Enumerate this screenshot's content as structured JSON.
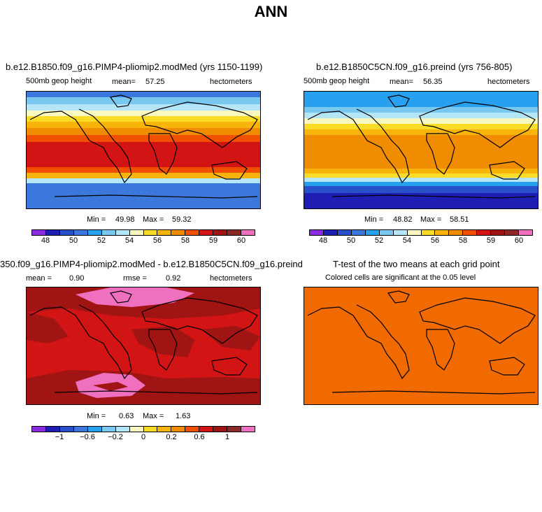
{
  "main_title": "ANN",
  "units": "hectometers",
  "panels": [
    {
      "title": "b.e12.B1850.f09_g16.PIMP4-pliomip2.modMed (yrs 1150-1199)",
      "field": "500mb  geop height",
      "mean_label": "mean=",
      "mean": "57.25",
      "units": "hectometers",
      "min_label": "Min =",
      "min": "49.98",
      "max_label": "Max =",
      "max": "59.32"
    },
    {
      "title": "b.e12.B1850C5CN.f09_g16.preind (yrs 756-805)",
      "field": "500mb  geop height",
      "mean_label": "mean=",
      "mean": "56.35",
      "units": "hectometers",
      "min_label": "Min =",
      "min": "48.82",
      "max_label": "Max =",
      "max": "58.51"
    },
    {
      "title": "350.f09_g16.PIMP4-pliomip2.modMed - b.e12.B1850C5CN.f09_g16.preind",
      "mean_label": "mean =",
      "mean": "0.90",
      "rmse_label": "rmse =",
      "rmse": "0.92",
      "units": "hectometers",
      "min_label": "Min =",
      "min": "0.63",
      "max_label": "Max =",
      "max": "1.63"
    },
    {
      "title": "T-test of the two means at each grid point",
      "subtitle": "Colored cells are significant at the 0.05 level"
    }
  ],
  "colorbar_colors": [
    "#8a2be2",
    "#1e1eb4",
    "#2850c8",
    "#3c78dc",
    "#28a0f0",
    "#78c8f0",
    "#b4e6f8",
    "#f8f8c0",
    "#f8dc28",
    "#f8b40a",
    "#f08c00",
    "#f05000",
    "#d21414",
    "#a01414",
    "#8c2828",
    "#f070c0"
  ],
  "colorbar_abs_ticks": [
    "48",
    "50",
    "52",
    "54",
    "56",
    "58",
    "59",
    "60"
  ],
  "colorbar_diff_ticks": [
    "−1",
    "−0.6",
    "−0.2",
    "0",
    "0.2",
    "0.6",
    "1"
  ]
}
